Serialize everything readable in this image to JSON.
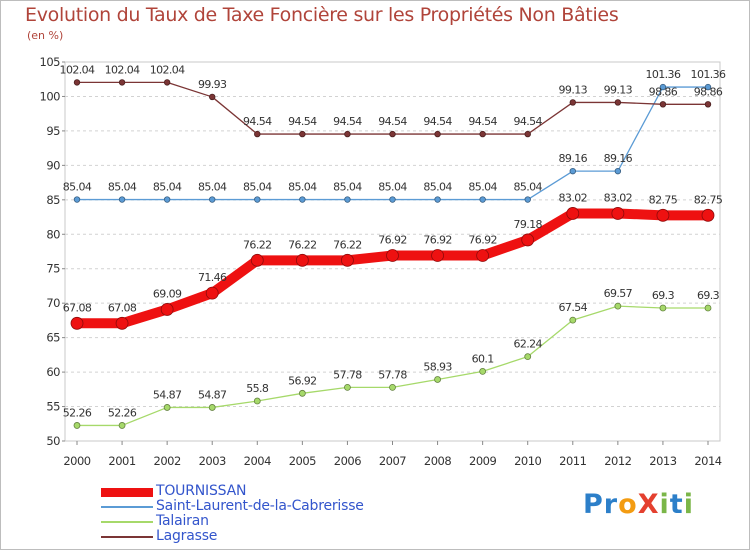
{
  "title": "Evolution du Taux de Taxe Foncière sur les Propriétés Non Bâties",
  "subtitle": "(en %)",
  "logo": {
    "text": "ProXiti",
    "letters": [
      {
        "char": "P",
        "color": "#2c7fc9"
      },
      {
        "char": "r",
        "color": "#2c7fc9"
      },
      {
        "char": "o",
        "color": "#f39c12"
      },
      {
        "char": "X",
        "color": "#e4402f"
      },
      {
        "char": "i",
        "color": "#7ab648"
      },
      {
        "char": "t",
        "color": "#2c7fc9"
      },
      {
        "char": "i",
        "color": "#7ab648"
      }
    ]
  },
  "chart_data": {
    "type": "line",
    "title": "Evolution du Taux de Taxe Foncière sur les Propriétés Non Bâties",
    "ylabel": "(en %)",
    "xlabel": "",
    "ylim": [
      50,
      105
    ],
    "yticks": [
      50,
      55,
      60,
      65,
      70,
      75,
      80,
      85,
      90,
      95,
      100,
      105
    ],
    "grid": "horizontal dashed",
    "categories": [
      "2000",
      "2001",
      "2002",
      "2003",
      "2004",
      "2005",
      "2006",
      "2007",
      "2008",
      "2009",
      "2010",
      "2011",
      "2012",
      "2013",
      "2014"
    ],
    "series": [
      {
        "name": "TOURNISSAN",
        "color": "#ee1111",
        "values": [
          67.08,
          67.08,
          69.09,
          71.46,
          76.22,
          76.22,
          76.22,
          76.92,
          76.92,
          76.92,
          79.18,
          83.02,
          83.02,
          82.75,
          82.75
        ],
        "labels": [
          "67.08",
          "67.08",
          "69.09",
          "71.46",
          "76.22",
          "76.22",
          "76.22",
          "76.92",
          "76.92",
          "76.92",
          "79.18",
          "83.02",
          "83.02",
          "82.75",
          "82.75"
        ]
      },
      {
        "name": "Saint-Laurent-de-la-Cabrerisse",
        "color": "#5b9bd5",
        "values": [
          85.04,
          85.04,
          85.04,
          85.04,
          85.04,
          85.04,
          85.04,
          85.04,
          85.04,
          85.04,
          85.04,
          89.16,
          89.16,
          101.36,
          101.36
        ],
        "labels": [
          "85.04",
          "85.04",
          "85.04",
          "85.04",
          "85.04",
          "85.04",
          "85.04",
          "85.04",
          "85.04",
          "85.04",
          "85.04",
          "89.16",
          "89.16",
          "101.36",
          "101.36"
        ]
      },
      {
        "name": "Talairan",
        "color": "#a6d96a",
        "values": [
          52.26,
          52.26,
          54.87,
          54.87,
          55.8,
          56.92,
          57.78,
          57.78,
          58.93,
          60.1,
          62.24,
          67.54,
          69.57,
          69.3,
          69.3
        ],
        "labels": [
          "52.26",
          "52.26",
          "54.87",
          "54.87",
          "55.8",
          "56.92",
          "57.78",
          "57.78",
          "58.93",
          "60.1",
          "62.24",
          "67.54",
          "69.57",
          "69.3",
          "69.3"
        ]
      },
      {
        "name": "Lagrasse",
        "color": "#7b3535",
        "values": [
          102.04,
          102.04,
          102.04,
          99.93,
          94.54,
          94.54,
          94.54,
          94.54,
          94.54,
          94.54,
          94.54,
          99.13,
          99.13,
          98.86,
          98.86
        ],
        "labels": [
          "102.04",
          "102.04",
          "102.04",
          "99.93",
          "94.54",
          "94.54",
          "94.54",
          "94.54",
          "94.54",
          "94.54",
          "94.54",
          "99.13",
          "99.13",
          "98.86",
          "98.86"
        ]
      }
    ],
    "legend": {
      "position": "bottom-left"
    }
  }
}
